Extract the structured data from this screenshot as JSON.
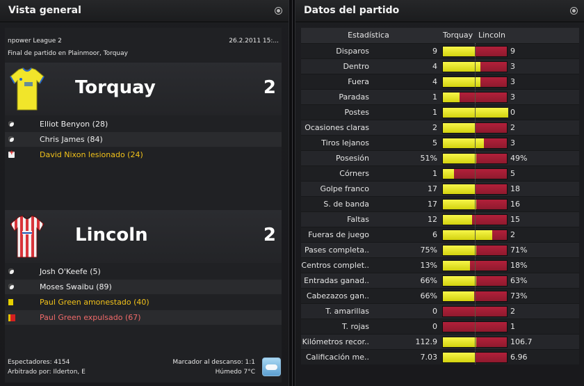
{
  "left_panel": {
    "title": "Vista general",
    "competition": "npower League 2",
    "date": "26.2.2011 15:...",
    "venue": "Final de partido en Plainmoor, Torquay",
    "home": {
      "name": "Torquay",
      "score": "2",
      "events": [
        {
          "type": "goal",
          "icon": "ball-icon",
          "text": "Elliot Benyon (28)",
          "style": "normal"
        },
        {
          "type": "goal",
          "icon": "ball-icon",
          "text": "Chris James (84)",
          "style": "normal"
        },
        {
          "type": "injury",
          "icon": "injury-icon",
          "text": "David Nixon lesionado (24)",
          "style": "yellow"
        }
      ]
    },
    "away": {
      "name": "Lincoln",
      "score": "2",
      "events": [
        {
          "type": "goal",
          "icon": "ball-icon",
          "text": "Josh O'Keefe (5)",
          "style": "normal"
        },
        {
          "type": "goal",
          "icon": "ball-icon",
          "text": "Moses Swaibu (89)",
          "style": "normal"
        },
        {
          "type": "yellow",
          "icon": "yellow-card-icon",
          "text": "Paul Green amonestado (40)",
          "style": "yellow"
        },
        {
          "type": "red",
          "icon": "red-card-icon",
          "text": "Paul Green expulsado (67)",
          "style": "red"
        }
      ]
    },
    "footer": {
      "attendance": "Espectadores: 4154",
      "referee": "Arbitrado por: Ilderton, E",
      "halftime": "Marcador al descanso: 1:1",
      "weather": "Húmedo 7°C",
      "weather_icon": "cloud-icon"
    }
  },
  "right_panel": {
    "title": "Datos del partido",
    "header": {
      "stat": "Estadística",
      "home": "Torquay",
      "away": "Lincoln"
    },
    "colors": {
      "home_bar": "#e8e726",
      "away_bar": "#a51d36"
    },
    "stats": [
      {
        "label": "Disparos",
        "home": "9",
        "away": "9",
        "home_share": 0.5
      },
      {
        "label": "Dentro",
        "home": "4",
        "away": "3",
        "home_share": 0.571
      },
      {
        "label": "Fuera",
        "home": "4",
        "away": "3",
        "home_share": 0.571
      },
      {
        "label": "Paradas",
        "home": "1",
        "away": "3",
        "home_share": 0.25
      },
      {
        "label": "Postes",
        "home": "1",
        "away": "0",
        "home_share": 1.0
      },
      {
        "label": "Ocasiones claras",
        "home": "2",
        "away": "2",
        "home_share": 0.5
      },
      {
        "label": "Tiros lejanos",
        "home": "5",
        "away": "3",
        "home_share": 0.625
      },
      {
        "label": "Posesión",
        "home": "51%",
        "away": "49%",
        "home_share": 0.51
      },
      {
        "label": "Córners",
        "home": "1",
        "away": "5",
        "home_share": 0.167
      },
      {
        "label": "Golpe franco",
        "home": "17",
        "away": "18",
        "home_share": 0.486
      },
      {
        "label": "S. de banda",
        "home": "17",
        "away": "16",
        "home_share": 0.515
      },
      {
        "label": "Faltas",
        "home": "12",
        "away": "15",
        "home_share": 0.444
      },
      {
        "label": "Fueras de juego",
        "home": "6",
        "away": "2",
        "home_share": 0.75
      },
      {
        "label": "Pases completa..",
        "home": "75%",
        "away": "71%",
        "home_share": 0.514
      },
      {
        "label": "Centros complet..",
        "home": "13%",
        "away": "18%",
        "home_share": 0.419
      },
      {
        "label": "Entradas ganad..",
        "home": "66%",
        "away": "63%",
        "home_share": 0.512
      },
      {
        "label": "Cabezazos gan..",
        "home": "66%",
        "away": "73%",
        "home_share": 0.475
      },
      {
        "label": "T. amarillas",
        "home": "0",
        "away": "2",
        "home_share": 0.0
      },
      {
        "label": "T. rojas",
        "home": "0",
        "away": "1",
        "home_share": 0.0
      },
      {
        "label": "Kilómetros recor..",
        "home": "112.9",
        "away": "106.7",
        "home_share": 0.514
      },
      {
        "label": "Calificación me..",
        "home": "7.03",
        "away": "6.96",
        "home_share": 0.502
      }
    ]
  }
}
